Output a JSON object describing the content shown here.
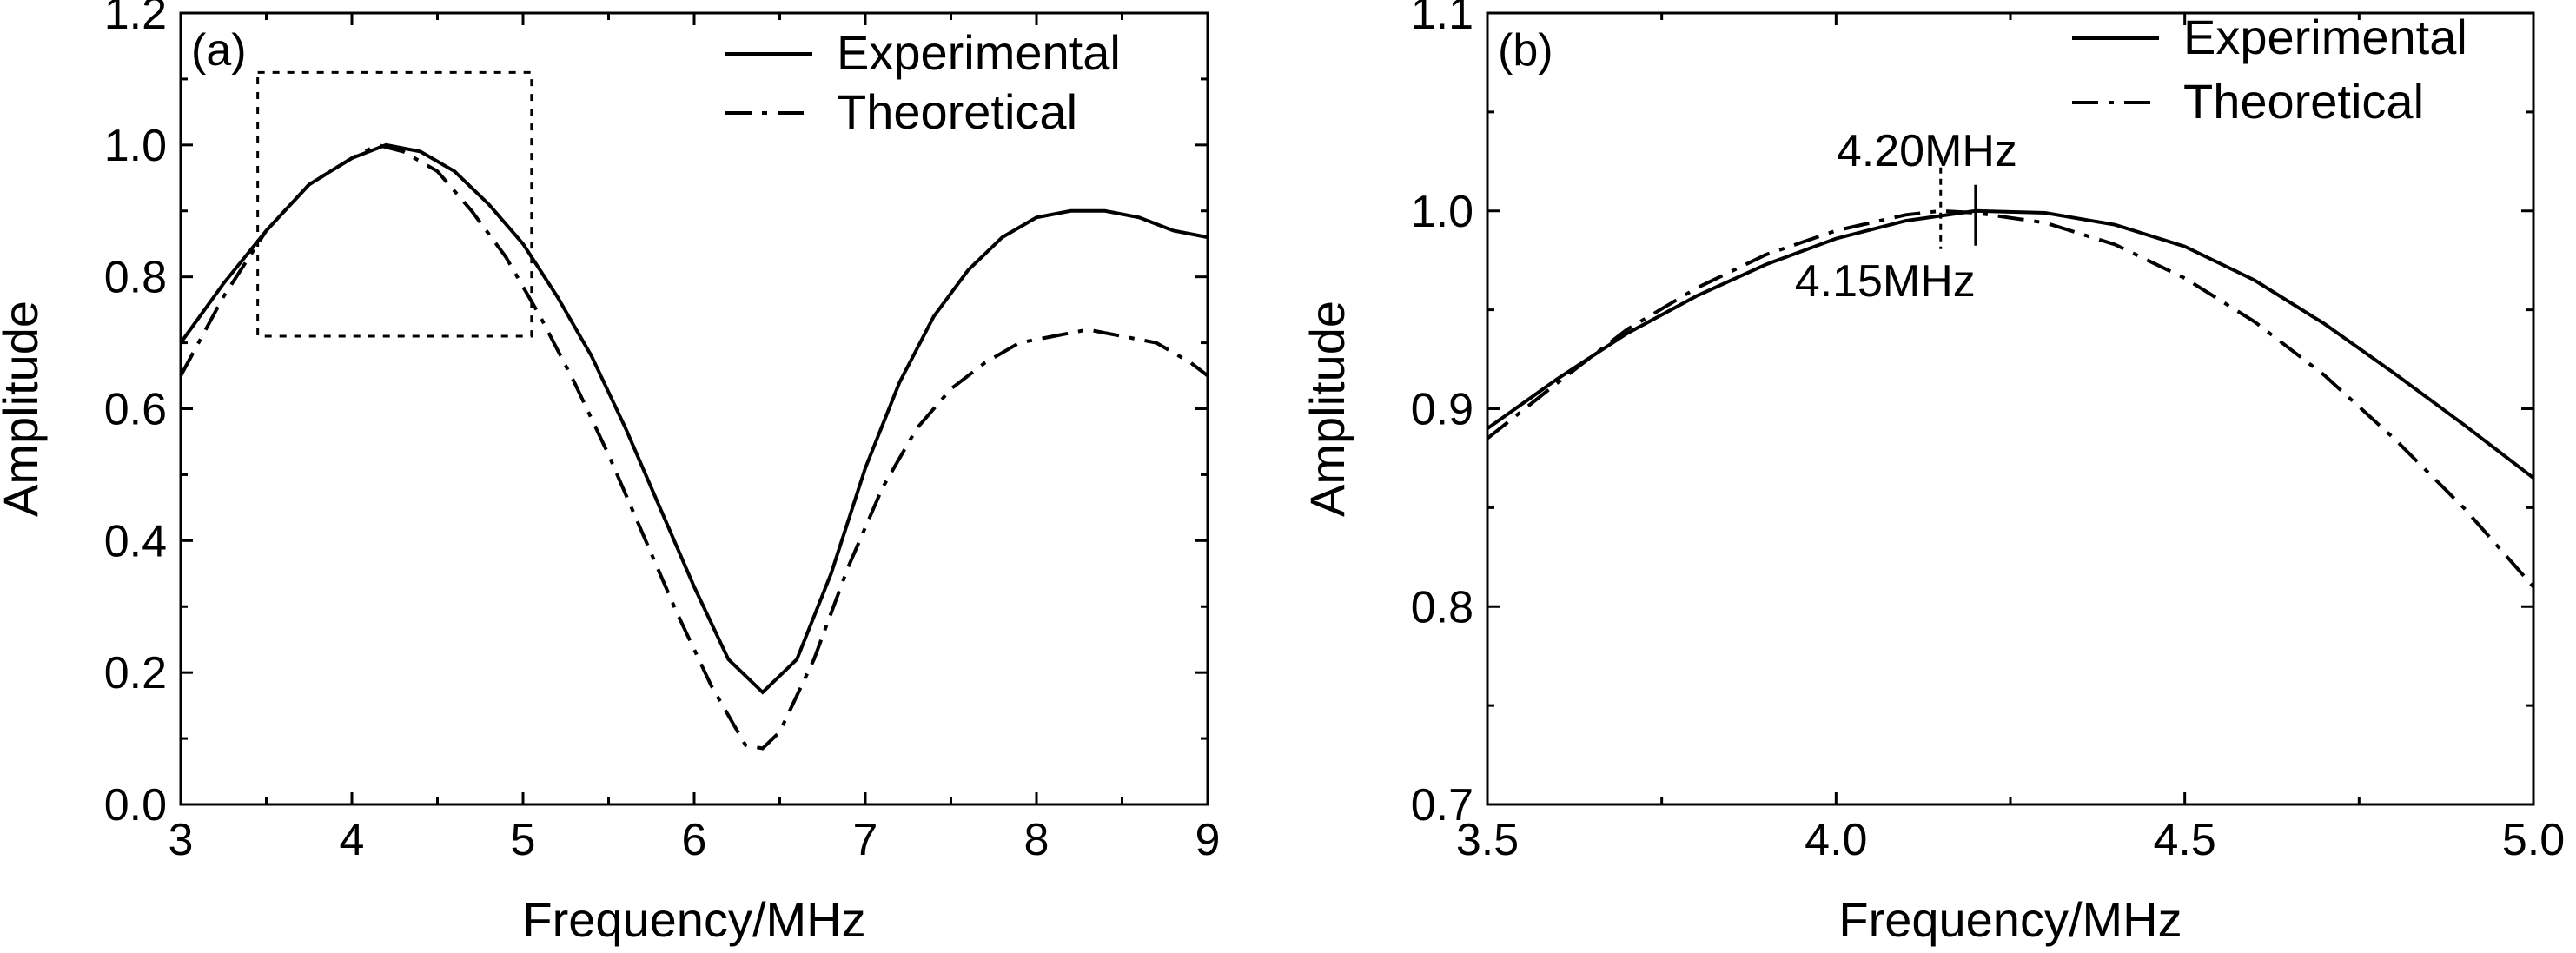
{
  "chart_data": [
    {
      "panel_label": "(a)",
      "type": "line",
      "xlabel": "Frequency/MHz",
      "ylabel": "Amplitude",
      "xlim": [
        3,
        9
      ],
      "ylim": [
        0.0,
        1.2
      ],
      "xticks": [
        3,
        4,
        5,
        6,
        7,
        8,
        9
      ],
      "xtick_labels": [
        "3",
        "4",
        "5",
        "6",
        "7",
        "8",
        "9"
      ],
      "yticks": [
        0.0,
        0.2,
        0.4,
        0.6,
        0.8,
        1.0,
        1.2
      ],
      "ytick_labels": [
        "0.0",
        "0.2",
        "0.4",
        "0.6",
        "0.8",
        "1.0",
        "1.2"
      ],
      "legend": {
        "placement": "top-right",
        "entries": [
          "Experimental",
          "Theoretical"
        ]
      },
      "zoom_box": {
        "x": [
          3.45,
          5.05
        ],
        "y": [
          0.71,
          1.11
        ]
      },
      "series": [
        {
          "name": "Experimental",
          "style": "solid",
          "points": [
            [
              3.0,
              0.7
            ],
            [
              3.25,
              0.79
            ],
            [
              3.5,
              0.87
            ],
            [
              3.75,
              0.94
            ],
            [
              4.0,
              0.98
            ],
            [
              4.2,
              1.0
            ],
            [
              4.4,
              0.99
            ],
            [
              4.6,
              0.96
            ],
            [
              4.8,
              0.91
            ],
            [
              5.0,
              0.85
            ],
            [
              5.2,
              0.77
            ],
            [
              5.4,
              0.68
            ],
            [
              5.6,
              0.57
            ],
            [
              5.8,
              0.45
            ],
            [
              6.0,
              0.33
            ],
            [
              6.2,
              0.22
            ],
            [
              6.4,
              0.17
            ],
            [
              6.6,
              0.22
            ],
            [
              6.8,
              0.35
            ],
            [
              7.0,
              0.51
            ],
            [
              7.2,
              0.64
            ],
            [
              7.4,
              0.74
            ],
            [
              7.6,
              0.81
            ],
            [
              7.8,
              0.86
            ],
            [
              8.0,
              0.89
            ],
            [
              8.2,
              0.9
            ],
            [
              8.4,
              0.9
            ],
            [
              8.6,
              0.89
            ],
            [
              8.8,
              0.87
            ],
            [
              9.0,
              0.86
            ]
          ]
        },
        {
          "name": "Theoretical",
          "style": "dashdot",
          "points": [
            [
              3.0,
              0.65
            ],
            [
              3.25,
              0.77
            ],
            [
              3.5,
              0.87
            ],
            [
              3.75,
              0.94
            ],
            [
              4.0,
              0.98
            ],
            [
              4.15,
              1.0
            ],
            [
              4.3,
              0.99
            ],
            [
              4.5,
              0.96
            ],
            [
              4.7,
              0.9
            ],
            [
              4.9,
              0.83
            ],
            [
              5.1,
              0.74
            ],
            [
              5.3,
              0.64
            ],
            [
              5.5,
              0.53
            ],
            [
              5.7,
              0.41
            ],
            [
              5.9,
              0.29
            ],
            [
              6.1,
              0.18
            ],
            [
              6.3,
              0.09
            ],
            [
              6.4,
              0.085
            ],
            [
              6.5,
              0.11
            ],
            [
              6.7,
              0.22
            ],
            [
              6.9,
              0.36
            ],
            [
              7.1,
              0.48
            ],
            [
              7.3,
              0.57
            ],
            [
              7.5,
              0.63
            ],
            [
              7.7,
              0.67
            ],
            [
              7.9,
              0.7
            ],
            [
              8.1,
              0.71
            ],
            [
              8.3,
              0.72
            ],
            [
              8.5,
              0.71
            ],
            [
              8.7,
              0.7
            ],
            [
              8.9,
              0.67
            ],
            [
              9.0,
              0.65
            ]
          ]
        }
      ]
    },
    {
      "panel_label": "(b)",
      "type": "line",
      "xlabel": "Frequency/MHz",
      "ylabel": "Amplitude",
      "xlim": [
        3.5,
        5.0
      ],
      "ylim": [
        0.7,
        1.1
      ],
      "xticks": [
        3.5,
        4.0,
        4.5,
        5.0
      ],
      "xtick_labels": [
        "3.5",
        "4.0",
        "4.5",
        "5.0"
      ],
      "yticks": [
        0.7,
        0.8,
        0.9,
        1.0,
        1.1
      ],
      "ytick_labels": [
        "0.7",
        "0.8",
        "0.9",
        "1.0",
        "1.1"
      ],
      "legend": {
        "placement": "top-right",
        "entries": [
          "Experimental",
          "Theoretical"
        ]
      },
      "annotations": [
        {
          "text": "4.20MHz",
          "x": 4.2,
          "y": 1.0
        },
        {
          "text": "4.15MHz",
          "x": 4.15,
          "y": 1.0
        }
      ],
      "series": [
        {
          "name": "Experimental",
          "style": "solid",
          "points": [
            [
              3.5,
              0.89
            ],
            [
              3.6,
              0.915
            ],
            [
              3.7,
              0.938
            ],
            [
              3.8,
              0.957
            ],
            [
              3.9,
              0.973
            ],
            [
              4.0,
              0.986
            ],
            [
              4.1,
              0.995
            ],
            [
              4.2,
              1.0
            ],
            [
              4.3,
              0.999
            ],
            [
              4.4,
              0.993
            ],
            [
              4.5,
              0.982
            ],
            [
              4.6,
              0.965
            ],
            [
              4.7,
              0.943
            ],
            [
              4.8,
              0.918
            ],
            [
              4.9,
              0.892
            ],
            [
              5.0,
              0.865
            ]
          ]
        },
        {
          "name": "Theoretical",
          "style": "dashdot",
          "points": [
            [
              3.5,
              0.885
            ],
            [
              3.6,
              0.913
            ],
            [
              3.7,
              0.94
            ],
            [
              3.8,
              0.961
            ],
            [
              3.9,
              0.978
            ],
            [
              4.0,
              0.99
            ],
            [
              4.1,
              0.998
            ],
            [
              4.15,
              1.0
            ],
            [
              4.2,
              0.999
            ],
            [
              4.3,
              0.994
            ],
            [
              4.4,
              0.983
            ],
            [
              4.5,
              0.966
            ],
            [
              4.6,
              0.944
            ],
            [
              4.7,
              0.917
            ],
            [
              4.8,
              0.885
            ],
            [
              4.9,
              0.85
            ],
            [
              5.0,
              0.81
            ]
          ]
        }
      ]
    }
  ]
}
